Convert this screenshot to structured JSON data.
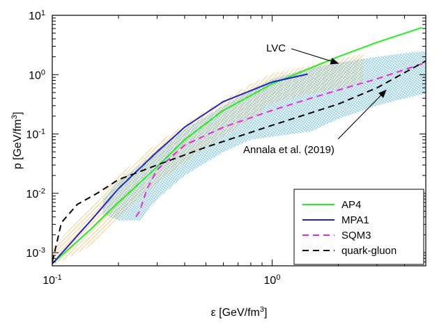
{
  "chart_data": {
    "type": "line",
    "title": "",
    "xlabel": {
      "main": "ε [GeV/fm",
      "sup": "3",
      "tail": "]"
    },
    "ylabel": {
      "main": "p [GeV/fm",
      "sup": "3",
      "tail": "]"
    },
    "xscale": "log",
    "yscale": "log",
    "xlim": [
      0.1,
      5.0
    ],
    "ylim": [
      0.0006,
      10
    ],
    "x_ticks": [
      {
        "value": 0.1,
        "base": "10",
        "exp": "-1"
      },
      {
        "value": 1.0,
        "base": "10",
        "exp": "0"
      }
    ],
    "y_ticks": [
      {
        "value": 0.001,
        "base": "10",
        "exp": "-3"
      },
      {
        "value": 0.01,
        "base": "10",
        "exp": "-2"
      },
      {
        "value": 0.1,
        "base": "10",
        "exp": "-1"
      },
      {
        "value": 1.0,
        "base": "10",
        "exp": "0"
      },
      {
        "value": 10.0,
        "base": "10",
        "exp": "1"
      }
    ],
    "series": [
      {
        "name": "AP4",
        "color": "#22ee22",
        "dash": "solid",
        "x": [
          0.1,
          0.15,
          0.2,
          0.3,
          0.4,
          0.6,
          1.0,
          1.5,
          2.0,
          3.0,
          4.8
        ],
        "y": [
          0.00065,
          0.0025,
          0.007,
          0.028,
          0.08,
          0.25,
          0.7,
          1.3,
          2.0,
          3.5,
          6.2
        ]
      },
      {
        "name": "MPA1",
        "color": "#2222cc",
        "dash": "solid",
        "x": [
          0.1,
          0.15,
          0.2,
          0.3,
          0.4,
          0.6,
          1.0,
          1.45
        ],
        "y": [
          0.00065,
          0.0035,
          0.012,
          0.05,
          0.13,
          0.35,
          0.75,
          1.02
        ]
      },
      {
        "name": "SQM3",
        "color": "#ee22ee",
        "dash": "dashed",
        "x": [
          0.24,
          0.25,
          0.27,
          0.3,
          0.4,
          0.6,
          1.0,
          1.5,
          2.0,
          3.0,
          5.0
        ],
        "y": [
          0.004,
          0.005,
          0.012,
          0.025,
          0.065,
          0.13,
          0.25,
          0.4,
          0.55,
          0.85,
          1.6
        ]
      },
      {
        "name": "quark-gluon",
        "color": "#000000",
        "dash": "dashed",
        "x": [
          0.1,
          0.105,
          0.11,
          0.13,
          0.16,
          0.2,
          0.3,
          0.5,
          1.0,
          2.0,
          3.0,
          5.0
        ],
        "y": [
          0.0007,
          0.0015,
          0.0032,
          0.0065,
          0.01,
          0.017,
          0.03,
          0.06,
          0.14,
          0.32,
          0.6,
          1.7
        ]
      }
    ],
    "bands": [
      {
        "name": "LVC",
        "style": "orange-hatch",
        "color": "#f5a623",
        "x": [
          0.1,
          0.15,
          0.2,
          0.3,
          0.5,
          0.8,
          1.0,
          1.5,
          2.0,
          2.6
        ],
        "y_upper": [
          0.0012,
          0.006,
          0.02,
          0.07,
          0.25,
          0.7,
          1.05,
          1.45,
          1.8,
          2.3
        ],
        "y_lower": [
          0.0006,
          0.0013,
          0.004,
          0.015,
          0.06,
          0.18,
          0.33,
          0.48,
          0.58,
          0.75
        ]
      },
      {
        "name": "Annala et al. (2019)",
        "style": "blue-hatch",
        "color": "#59b6d6",
        "x": [
          0.17,
          0.2,
          0.25,
          0.3,
          0.4,
          0.6,
          0.8,
          1.0,
          1.5,
          2.0,
          3.0,
          4.0,
          5.0
        ],
        "y_upper": [
          0.008,
          0.016,
          0.03,
          0.055,
          0.12,
          0.3,
          0.55,
          0.85,
          1.3,
          1.6,
          2.0,
          2.3,
          2.5
        ],
        "y_lower": [
          0.0045,
          0.0035,
          0.0035,
          0.008,
          0.02,
          0.05,
          0.08,
          0.09,
          0.11,
          0.18,
          0.3,
          0.4,
          0.48
        ]
      }
    ],
    "annotations": [
      {
        "text": "LVC",
        "target_band": "LVC",
        "arrow_tip": [
          2.0,
          1.55
        ]
      },
      {
        "text": "Annala et al. (2019)",
        "target_band": "Annala et al. (2019)",
        "arrow_tip": [
          3.3,
          0.55
        ]
      }
    ],
    "legend": {
      "position": "bottom-right"
    },
    "grid": false
  }
}
